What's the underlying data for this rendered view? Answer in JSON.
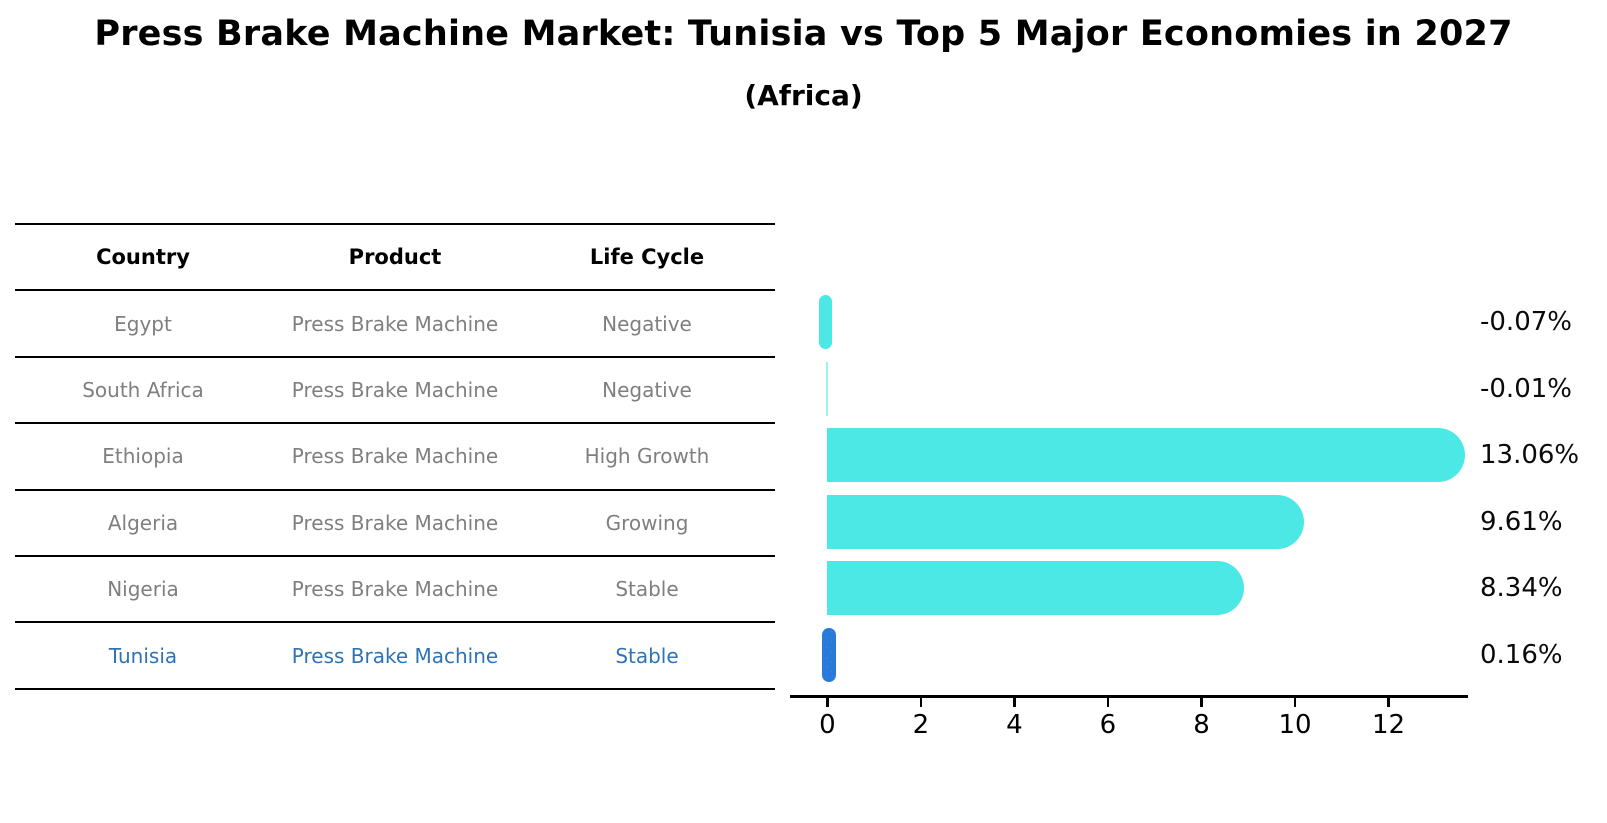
{
  "title": "Press Brake Machine Market: Tunisia vs Top 5 Major Economies in 2027",
  "subtitle": "(Africa)",
  "table": {
    "headers": [
      "Country",
      "Product",
      "Life Cycle"
    ],
    "rows": [
      {
        "country": "Egypt",
        "product": "Press Brake Machine",
        "life_cycle": "Negative",
        "highlight": false
      },
      {
        "country": "South Africa",
        "product": "Press Brake Machine",
        "life_cycle": "Negative",
        "highlight": false
      },
      {
        "country": "Ethiopia",
        "product": "Press Brake Machine",
        "life_cycle": "High Growth",
        "highlight": false
      },
      {
        "country": "Algeria",
        "product": "Press Brake Machine",
        "life_cycle": "Growing",
        "highlight": false
      },
      {
        "country": "Nigeria",
        "product": "Press Brake Machine",
        "life_cycle": "Stable",
        "highlight": false
      },
      {
        "country": "Tunisia",
        "product": "Press Brake Machine",
        "life_cycle": "Stable",
        "highlight": true
      }
    ]
  },
  "chart_data": {
    "type": "bar",
    "orientation": "horizontal",
    "title": "Press Brake Machine Market: Tunisia vs Top 5 Major Economies in 2027 (Africa)",
    "categories": [
      "Egypt",
      "South Africa",
      "Ethiopia",
      "Algeria",
      "Nigeria",
      "Tunisia"
    ],
    "values": [
      -0.07,
      -0.01,
      13.06,
      9.61,
      8.34,
      0.16
    ],
    "value_labels": [
      "-0.07%",
      "-0.01%",
      "13.06%",
      "9.61%",
      "8.34%",
      "0.16%"
    ],
    "x_ticks": [
      0,
      2,
      4,
      6,
      8,
      10,
      12
    ],
    "xlim": [
      -0.8,
      13.7
    ],
    "grid": false,
    "legend": null,
    "bar_color": "#4BE8E6",
    "highlight_color": "#2A7AD9",
    "highlight_index": 5,
    "axis_color": "#000000"
  }
}
